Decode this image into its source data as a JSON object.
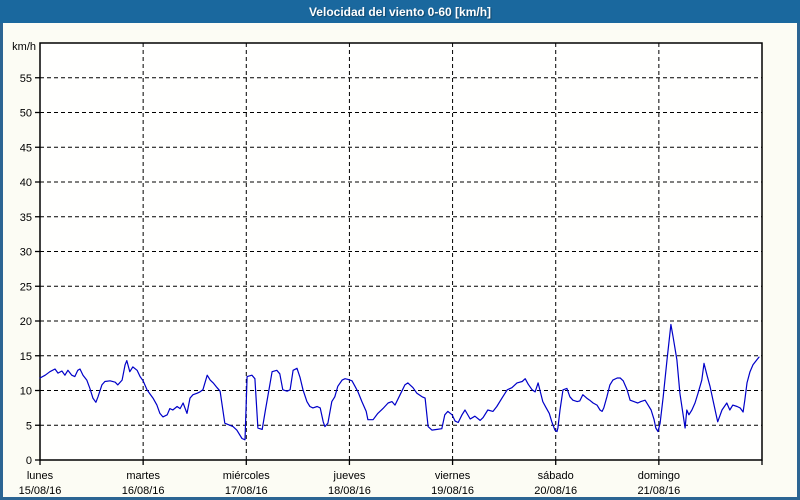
{
  "title": "Velocidad del viento 0-60 [km/h]",
  "colors": {
    "titlebar": "#1a689e",
    "window_border": "#2c6593",
    "panel_bg": "#fcfcf4",
    "plot_bg": "#fffffe",
    "grid": "#000000",
    "frame": "#000000",
    "text": "#000000",
    "line": "#0000c8"
  },
  "chart_data": {
    "type": "line",
    "title": "Velocidad del viento 0-60 [km/h]",
    "unit_label": "km/h",
    "xlabel": "",
    "ylabel": "km/h",
    "ylim": [
      0,
      60
    ],
    "yticks": [
      0,
      5,
      10,
      15,
      20,
      25,
      30,
      35,
      40,
      45,
      50,
      55
    ],
    "xlim_hours": [
      0,
      168
    ],
    "x_day_step_hours": 24,
    "grid": "dashed",
    "legend": "none",
    "days": [
      {
        "name": "lunes",
        "date": "15/08/16"
      },
      {
        "name": "martes",
        "date": "16/08/16"
      },
      {
        "name": "miércoles",
        "date": "17/08/16"
      },
      {
        "name": "jueves",
        "date": "18/08/16"
      },
      {
        "name": "viernes",
        "date": "19/08/16"
      },
      {
        "name": "sábado",
        "date": "20/08/16"
      },
      {
        "name": "domingo",
        "date": "21/08/16"
      }
    ],
    "series": [
      {
        "name": "velocidad del viento",
        "color": "#0000c8",
        "points": [
          [
            0,
            11.8
          ],
          [
            1.2,
            12.2
          ],
          [
            2.3,
            12.7
          ],
          [
            3.5,
            13.1
          ],
          [
            4.2,
            12.5
          ],
          [
            5.1,
            12.8
          ],
          [
            5.8,
            12.2
          ],
          [
            6.5,
            12.9
          ],
          [
            7.4,
            12.2
          ],
          [
            8.1,
            12.0
          ],
          [
            8.8,
            12.9
          ],
          [
            9.3,
            13.1
          ],
          [
            10,
            12.2
          ],
          [
            10.9,
            11.5
          ],
          [
            11.6,
            10.3
          ],
          [
            12.3,
            8.9
          ],
          [
            13,
            8.3
          ],
          [
            13.5,
            9.1
          ],
          [
            14.4,
            10.8
          ],
          [
            15.1,
            11.3
          ],
          [
            16.3,
            11.4
          ],
          [
            17.5,
            11.2
          ],
          [
            18.1,
            10.8
          ],
          [
            19.1,
            11.5
          ],
          [
            19.8,
            13.7
          ],
          [
            20.2,
            14.3
          ],
          [
            20.9,
            12.7
          ],
          [
            21.6,
            13.4
          ],
          [
            22.6,
            12.9
          ],
          [
            23.3,
            12.0
          ],
          [
            24,
            11.4
          ],
          [
            24.9,
            10.1
          ],
          [
            25.6,
            9.5
          ],
          [
            26.3,
            8.9
          ],
          [
            27.2,
            7.9
          ],
          [
            27.9,
            6.7
          ],
          [
            28.6,
            6.2
          ],
          [
            29.6,
            6.5
          ],
          [
            30.2,
            7.4
          ],
          [
            30.9,
            7.2
          ],
          [
            31.9,
            7.7
          ],
          [
            32.6,
            7.4
          ],
          [
            33.3,
            8.2
          ],
          [
            34.2,
            6.7
          ],
          [
            34.9,
            8.9
          ],
          [
            35.6,
            9.4
          ],
          [
            36.5,
            9.6
          ],
          [
            37.2,
            9.8
          ],
          [
            37.9,
            10.1
          ],
          [
            38.9,
            12.2
          ],
          [
            39.6,
            11.5
          ],
          [
            40.3,
            11.1
          ],
          [
            41.2,
            10.4
          ],
          [
            41.9,
            9.9
          ],
          [
            43,
            5.3
          ],
          [
            44.2,
            5.0
          ],
          [
            44.9,
            4.8
          ],
          [
            45.8,
            4.3
          ],
          [
            47,
            3.1
          ],
          [
            47.7,
            2.9
          ],
          [
            48.2,
            12.0
          ],
          [
            49.3,
            12.2
          ],
          [
            50,
            11.7
          ],
          [
            50.7,
            4.6
          ],
          [
            51.7,
            4.4
          ],
          [
            52.4,
            7.0
          ],
          [
            54,
            12.7
          ],
          [
            55.1,
            12.9
          ],
          [
            55.8,
            12.4
          ],
          [
            56.5,
            10.1
          ],
          [
            57.5,
            9.9
          ],
          [
            58.2,
            10.1
          ],
          [
            58.9,
            12.9
          ],
          [
            59.8,
            13.2
          ],
          [
            60.5,
            11.9
          ],
          [
            61.2,
            10.1
          ],
          [
            62.1,
            8.4
          ],
          [
            62.8,
            7.7
          ],
          [
            63.5,
            7.5
          ],
          [
            64.5,
            7.7
          ],
          [
            65.2,
            7.5
          ],
          [
            65.9,
            5.5
          ],
          [
            66.3,
            4.8
          ],
          [
            67,
            5.3
          ],
          [
            67.9,
            8.4
          ],
          [
            68.6,
            9.1
          ],
          [
            69.3,
            10.6
          ],
          [
            70.3,
            11.5
          ],
          [
            71,
            11.7
          ],
          [
            71.7,
            11.6
          ],
          [
            72.6,
            11.4
          ],
          [
            73.3,
            10.6
          ],
          [
            74,
            9.8
          ],
          [
            74.9,
            8.4
          ],
          [
            75.9,
            7.0
          ],
          [
            76.3,
            5.8
          ],
          [
            77.5,
            5.8
          ],
          [
            78.6,
            6.7
          ],
          [
            79.8,
            7.4
          ],
          [
            81,
            8.2
          ],
          [
            81.9,
            8.4
          ],
          [
            82.6,
            7.9
          ],
          [
            83.8,
            9.4
          ],
          [
            84.9,
            10.8
          ],
          [
            85.6,
            11.1
          ],
          [
            86.8,
            10.4
          ],
          [
            87.7,
            9.6
          ],
          [
            88.9,
            9.1
          ],
          [
            89.6,
            8.9
          ],
          [
            90.3,
            4.8
          ],
          [
            91.2,
            4.3
          ],
          [
            92.4,
            4.4
          ],
          [
            93.5,
            4.5
          ],
          [
            94.2,
            6.5
          ],
          [
            94.9,
            7.0
          ],
          [
            95.9,
            6.5
          ],
          [
            96.6,
            5.6
          ],
          [
            97.3,
            5.4
          ],
          [
            98.2,
            6.5
          ],
          [
            98.9,
            7.2
          ],
          [
            100.1,
            5.9
          ],
          [
            101.2,
            6.3
          ],
          [
            102.4,
            5.7
          ],
          [
            103.1,
            6.1
          ],
          [
            104.2,
            7.2
          ],
          [
            105.4,
            7.0
          ],
          [
            106.3,
            7.7
          ],
          [
            107.5,
            8.9
          ],
          [
            108.7,
            10.1
          ],
          [
            109.8,
            10.4
          ],
          [
            111,
            11.1
          ],
          [
            112.2,
            11.3
          ],
          [
            112.9,
            11.7
          ],
          [
            113.6,
            10.9
          ],
          [
            114.5,
            10.1
          ],
          [
            115.2,
            9.8
          ],
          [
            115.9,
            11.1
          ],
          [
            117,
            8.4
          ],
          [
            117.7,
            7.6
          ],
          [
            118.5,
            6.7
          ],
          [
            119.1,
            5.5
          ],
          [
            119.8,
            4.3
          ],
          [
            120.3,
            4.1
          ],
          [
            120.5,
            4.6
          ],
          [
            121,
            7.2
          ],
          [
            121.7,
            10.1
          ],
          [
            122.6,
            10.3
          ],
          [
            123.3,
            9.1
          ],
          [
            124,
            8.6
          ],
          [
            125,
            8.4
          ],
          [
            125.6,
            8.5
          ],
          [
            126.3,
            9.4
          ],
          [
            127.2,
            8.9
          ],
          [
            127.9,
            8.6
          ],
          [
            128.7,
            8.2
          ],
          [
            129.6,
            7.9
          ],
          [
            130.3,
            7.2
          ],
          [
            130.8,
            7.0
          ],
          [
            131.2,
            7.5
          ],
          [
            131.9,
            9.1
          ],
          [
            132.6,
            10.8
          ],
          [
            133.3,
            11.5
          ],
          [
            134.3,
            11.8
          ],
          [
            135,
            11.8
          ],
          [
            135.7,
            11.4
          ],
          [
            136.6,
            10.1
          ],
          [
            137.3,
            8.6
          ],
          [
            138.2,
            8.4
          ],
          [
            139.1,
            8.2
          ],
          [
            139.8,
            8.4
          ],
          [
            140.8,
            8.6
          ],
          [
            141.5,
            7.9
          ],
          [
            142.2,
            7.2
          ],
          [
            142.9,
            5.8
          ],
          [
            143.3,
            4.6
          ],
          [
            143.8,
            4.1
          ],
          [
            144.3,
            5.3
          ],
          [
            145,
            9.1
          ],
          [
            145.9,
            14.4
          ],
          [
            146.8,
            19.5
          ],
          [
            147.3,
            17.8
          ],
          [
            148.2,
            14.4
          ],
          [
            148.9,
            9.6
          ],
          [
            150.1,
            4.6
          ],
          [
            150.5,
            7.2
          ],
          [
            151,
            6.5
          ],
          [
            151.7,
            7.2
          ],
          [
            152.4,
            8.2
          ],
          [
            153.1,
            9.6
          ],
          [
            154,
            11.5
          ],
          [
            154.5,
            13.9
          ],
          [
            155.2,
            12.2
          ],
          [
            155.9,
            10.6
          ],
          [
            156.6,
            8.6
          ],
          [
            157.5,
            6.0
          ],
          [
            157.7,
            5.5
          ],
          [
            158.7,
            7.2
          ],
          [
            159.8,
            8.2
          ],
          [
            160.5,
            7.2
          ],
          [
            161.2,
            7.9
          ],
          [
            162.2,
            7.7
          ],
          [
            162.9,
            7.5
          ],
          [
            163.6,
            6.9
          ],
          [
            164,
            8.6
          ],
          [
            164.5,
            11.1
          ],
          [
            165.2,
            12.7
          ],
          [
            165.9,
            13.7
          ],
          [
            166.8,
            14.4
          ],
          [
            167.3,
            14.8
          ]
        ]
      }
    ]
  }
}
